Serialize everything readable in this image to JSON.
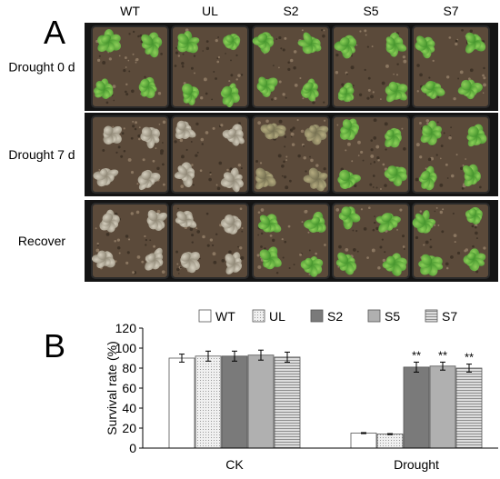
{
  "panel_a": {
    "label": "A",
    "genotypes": [
      "WT",
      "UL",
      "S2",
      "S5",
      "S7"
    ],
    "rows": [
      {
        "label": "Drought 0 d",
        "condition": "healthy"
      },
      {
        "label": "Drought 7 d",
        "condition": "drought"
      },
      {
        "label": "Recover",
        "condition": "recover"
      }
    ]
  },
  "panel_b": {
    "label": "B"
  },
  "chart_data": {
    "type": "bar",
    "title": "",
    "ylabel": "Survival rate (%)",
    "xlabel": "",
    "ylim": [
      0,
      120
    ],
    "yticks": [
      0,
      20,
      40,
      60,
      80,
      100,
      120
    ],
    "categories": [
      "CK",
      "Drought"
    ],
    "legend_position": "top",
    "grid": false,
    "series": [
      {
        "name": "WT",
        "values": [
          90,
          15
        ],
        "errors": [
          4,
          0.5
        ],
        "sig": [
          "",
          ""
        ],
        "color": "#ffffff",
        "pattern": "none"
      },
      {
        "name": "UL",
        "values": [
          92,
          14
        ],
        "errors": [
          5,
          0.5
        ],
        "sig": [
          "",
          ""
        ],
        "color": "#e6e6e6",
        "pattern": "dots"
      },
      {
        "name": "S2",
        "values": [
          92,
          81
        ],
        "errors": [
          5,
          5
        ],
        "sig": [
          "",
          "**"
        ],
        "color": "#7a7a7a",
        "pattern": "none"
      },
      {
        "name": "S5",
        "values": [
          93,
          82
        ],
        "errors": [
          5,
          4
        ],
        "sig": [
          "",
          "**"
        ],
        "color": "#b0b0b0",
        "pattern": "none"
      },
      {
        "name": "S7",
        "values": [
          91,
          80
        ],
        "errors": [
          5,
          4
        ],
        "sig": [
          "",
          "**"
        ],
        "color": "#d2d2d2",
        "pattern": "hlines"
      }
    ]
  }
}
